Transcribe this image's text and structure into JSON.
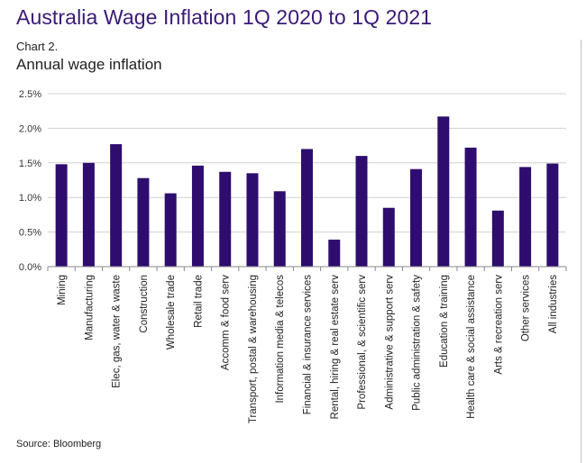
{
  "header": {
    "title": "Australia Wage Inflation 1Q 2020 to 1Q 2021",
    "chart_number": "Chart 2.",
    "subtitle": "Annual wage inflation"
  },
  "footer": {
    "source": "Source: Bloomberg"
  },
  "colors": {
    "bar": "#2e0d6e",
    "title": "#3a1a78",
    "grid": "#d0d0d0"
  },
  "chart_data": {
    "type": "bar",
    "title": "Annual wage inflation",
    "xlabel": "",
    "ylabel": "",
    "ylim": [
      0,
      2.5
    ],
    "yticks": [
      0,
      0.5,
      1.0,
      1.5,
      2.0,
      2.5
    ],
    "ytick_labels": [
      "0.0%",
      "0.5%",
      "1.0%",
      "1.5%",
      "2.0%",
      "2.5%"
    ],
    "grid": true,
    "categories": [
      "Mining",
      "Manufacturing",
      "Elec, gas, water & waste",
      "Construction",
      "Wholesale trade",
      "Retail trade",
      "Accomm & food serv",
      "Transport, postal & warehousing",
      "Information media & telecos",
      "Financial & insurance services",
      "Rental, hiring & real estate serv",
      "Professional, & scientific serv",
      "Administrative & support serv",
      "Public administration & safety",
      "Education & training",
      "Health care & social assistance",
      "Arts & recreation serv",
      "Other services",
      "All industries"
    ],
    "values": [
      1.48,
      1.5,
      1.77,
      1.28,
      1.06,
      1.46,
      1.37,
      1.35,
      1.09,
      1.7,
      0.39,
      1.6,
      0.85,
      1.41,
      2.17,
      1.72,
      0.81,
      1.44,
      1.49
    ]
  }
}
